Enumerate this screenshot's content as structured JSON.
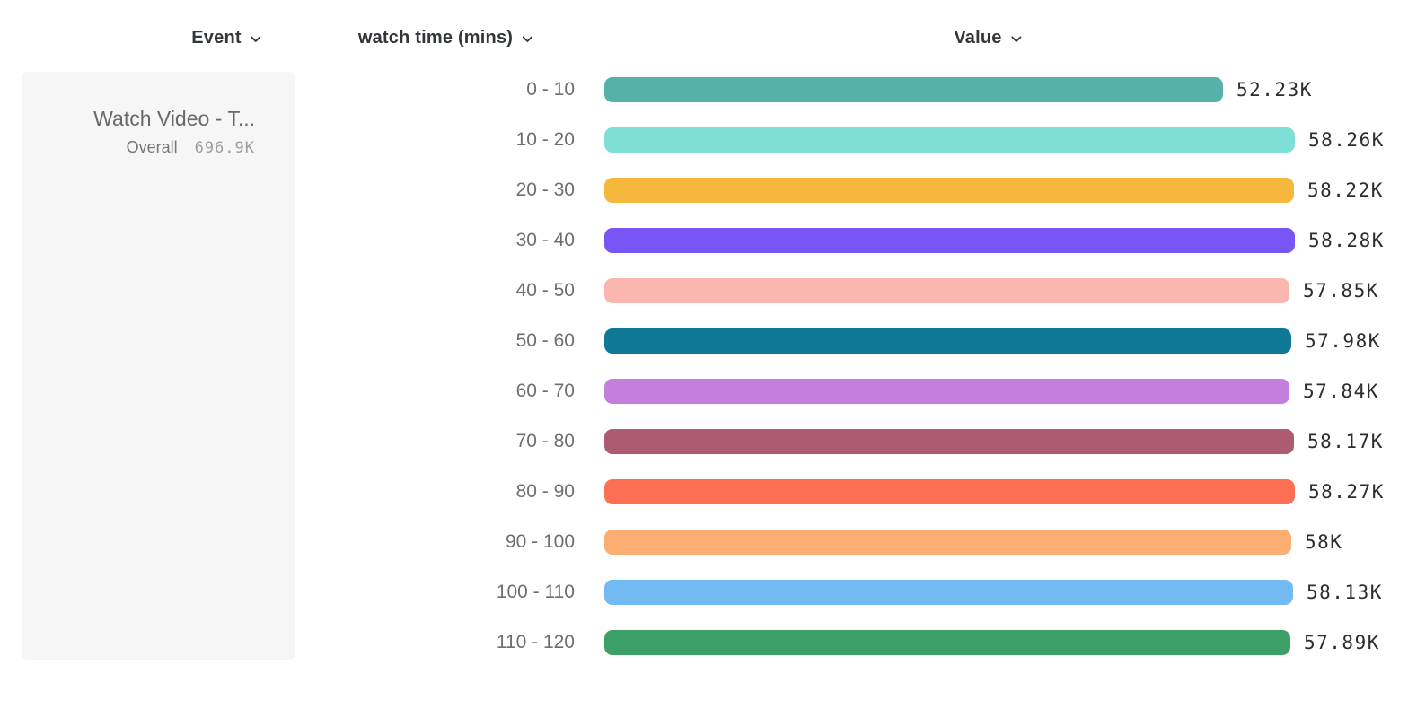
{
  "header": {
    "columns": [
      {
        "label": "Event",
        "icon": "chevron-down-icon"
      },
      {
        "label": "watch time (mins)",
        "icon": "chevron-down-icon"
      },
      {
        "label": "Value",
        "icon": "chevron-down-icon"
      }
    ]
  },
  "event_card": {
    "title": "Watch Video - T...",
    "overall_label": "Overall",
    "overall_value": "696.9K"
  },
  "chart_data": {
    "type": "bar",
    "orientation": "horizontal",
    "title": "",
    "xlabel": "Value",
    "ylabel": "watch time (mins)",
    "categories": [
      "0 - 10",
      "10 - 20",
      "20 - 30",
      "30 - 40",
      "40 - 50",
      "50 - 60",
      "60 - 70",
      "70 - 80",
      "80 - 90",
      "90 - 100",
      "100 - 110",
      "110 - 120"
    ],
    "values": [
      52230,
      58260,
      58220,
      58280,
      57850,
      57980,
      57840,
      58170,
      58270,
      58000,
      58130,
      57890
    ],
    "value_labels": [
      "52.23K",
      "58.26K",
      "58.22K",
      "58.28K",
      "57.85K",
      "57.98K",
      "57.84K",
      "58.17K",
      "58.27K",
      "58K",
      "58.13K",
      "57.89K"
    ],
    "bar_colors": [
      "#56b1ab",
      "#7fdfd6",
      "#f5b73c",
      "#7a55f6",
      "#fbb6af",
      "#107897",
      "#c47edd",
      "#ac5b71",
      "#fc6f53",
      "#fbad72",
      "#72baf2",
      "#3c9f66"
    ],
    "xlim": [
      0,
      58280
    ],
    "grid": false,
    "legend": false
  },
  "colors": {
    "header_text": "#33363c",
    "category_label": "#6e6e6e",
    "value_label": "#2d2d2d",
    "card_background": "#f6f6f6",
    "card_title": "#696969",
    "card_overall_label": "#757575",
    "card_overall_value": "#9e9e9e"
  }
}
